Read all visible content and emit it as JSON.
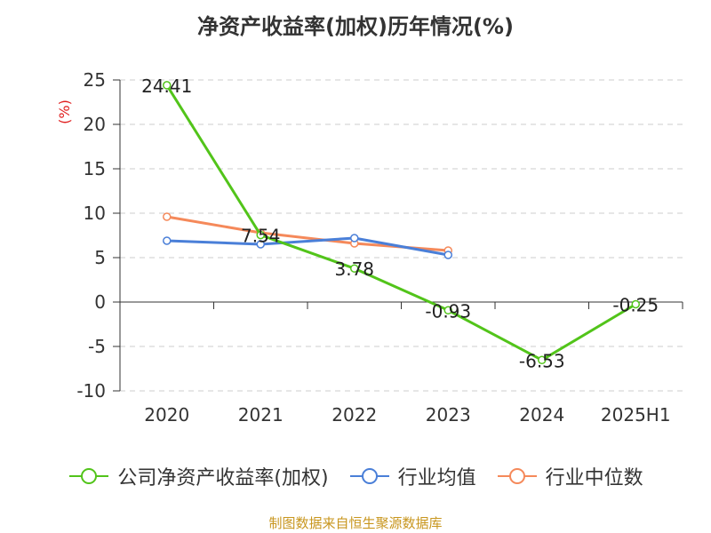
{
  "title": "净资产收益率(加权)历年情况(%)",
  "source": "制图数据来自恒生聚源数据库",
  "chart_data": {
    "type": "line",
    "title": "净资产收益率(加权)历年情况(%)",
    "ylabel": "(%)",
    "ylim": [
      -10,
      25
    ],
    "yticks": [
      25,
      20,
      15,
      10,
      5,
      0,
      -5,
      -10
    ],
    "categories": [
      "2020",
      "2021",
      "2022",
      "2023",
      "2024",
      "2025H1"
    ],
    "grid": true,
    "legend_position": "bottom",
    "series": [
      {
        "name": "公司净资产收益率(加权)",
        "color": "#52c41a",
        "values": [
          24.41,
          7.54,
          3.78,
          -0.93,
          -6.53,
          -0.25
        ],
        "labels": [
          "24.41",
          "7.54",
          "3.78",
          "-0.93",
          "-6.53",
          "-0.25"
        ]
      },
      {
        "name": "行业均值",
        "color": "#4a7fd8",
        "values": [
          6.9,
          6.5,
          7.2,
          5.3,
          null,
          null
        ]
      },
      {
        "name": "行业中位数",
        "color": "#f5895a",
        "values": [
          9.6,
          7.8,
          6.6,
          5.8,
          null,
          null
        ]
      }
    ]
  }
}
